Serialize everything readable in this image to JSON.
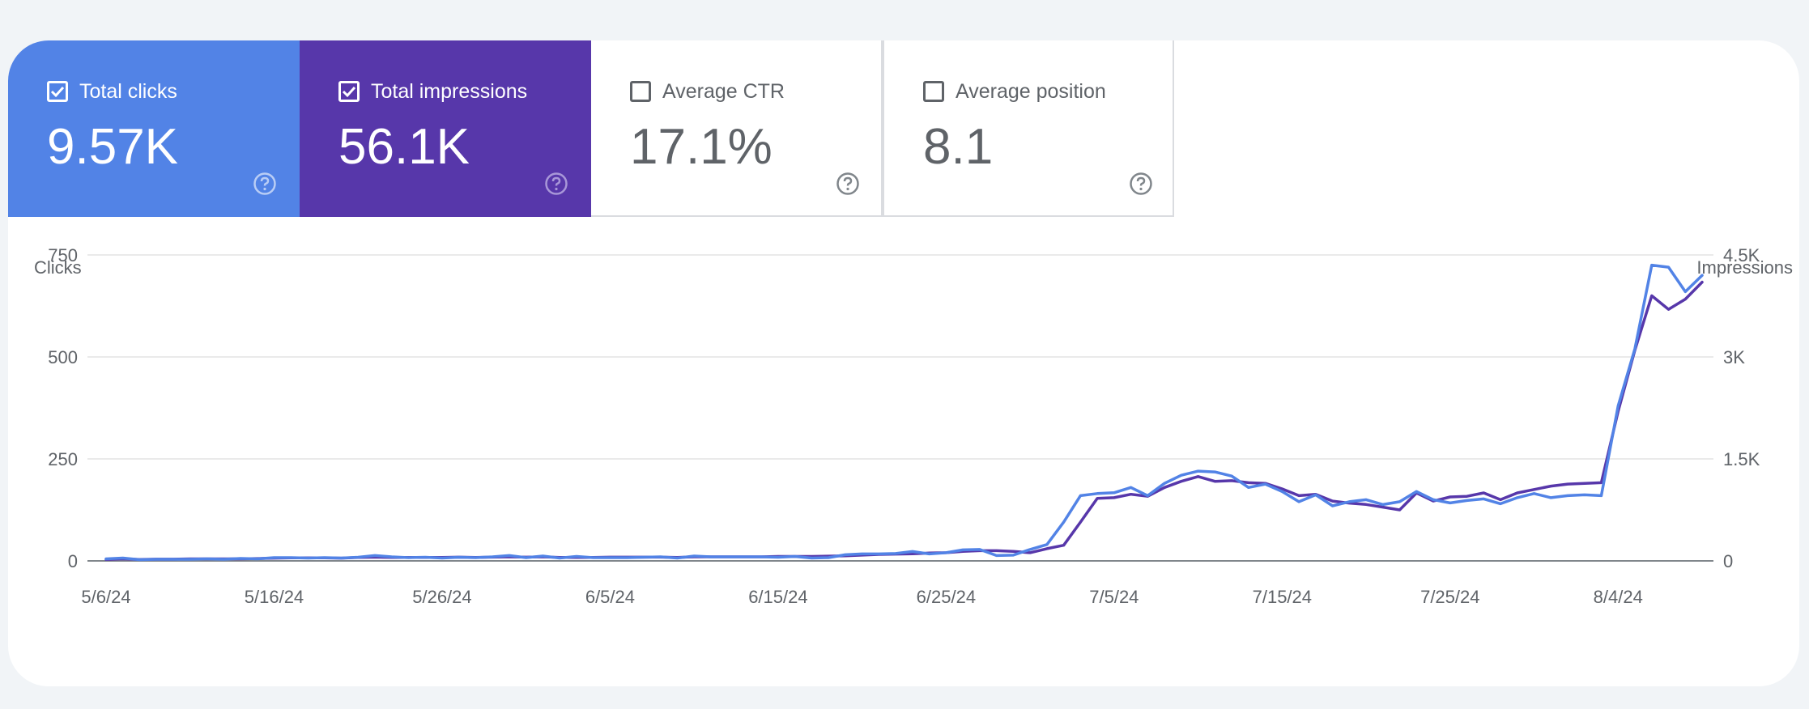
{
  "metrics": {
    "clicks": {
      "label": "Total clicks",
      "value": "9.57K",
      "checked": true,
      "color": "#5283e6"
    },
    "impressions": {
      "label": "Total impressions",
      "value": "56.1K",
      "checked": true,
      "color": "#5737aa"
    },
    "ctr": {
      "label": "Average CTR",
      "value": "17.1%",
      "checked": false
    },
    "position": {
      "label": "Average position",
      "value": "8.1",
      "checked": false
    }
  },
  "icons": {
    "checkbox_checked": "checkbox-checked-icon",
    "checkbox_empty": "checkbox-empty-icon",
    "help": "help-circle-icon"
  },
  "chart_data": {
    "type": "line",
    "left_axis_label": "Clicks",
    "right_axis_label": "Impressions",
    "left_ticks": [
      "0",
      "250",
      "500",
      "750"
    ],
    "right_ticks": [
      "0",
      "1.5K",
      "3K",
      "4.5K"
    ],
    "left_ylim": [
      0,
      750
    ],
    "right_ylim": [
      0,
      4500
    ],
    "x_tick_labels": [
      "5/6/24",
      "5/16/24",
      "5/26/24",
      "6/5/24",
      "6/15/24",
      "6/25/24",
      "7/5/24",
      "7/15/24",
      "7/25/24",
      "8/4/24"
    ],
    "x_start": "5/6/24",
    "x_end": "8/5/24",
    "grid": true,
    "series": [
      {
        "name": "Clicks",
        "axis": "left",
        "color": "#5283e6",
        "values": [
          5,
          7,
          3,
          4,
          4,
          4,
          5,
          4,
          6,
          5,
          8,
          8,
          7,
          8,
          7,
          9,
          13,
          10,
          8,
          9,
          7,
          9,
          8,
          10,
          13,
          8,
          12,
          7,
          11,
          8,
          8,
          8,
          9,
          10,
          7,
          12,
          10,
          10,
          10,
          10,
          9,
          11,
          7,
          8,
          15,
          17,
          17,
          18,
          23,
          17,
          20,
          27,
          28,
          13,
          14,
          28,
          40,
          95,
          160,
          165,
          167,
          180,
          160,
          190,
          210,
          220,
          218,
          208,
          180,
          188,
          170,
          145,
          162,
          135,
          145,
          150,
          138,
          145,
          170,
          150,
          142,
          148,
          152,
          140,
          155,
          165,
          155,
          160,
          162,
          160,
          380,
          520,
          725,
          720,
          660,
          700
        ]
      },
      {
        "name": "Impressions",
        "axis": "right",
        "color": "#5737aa",
        "values": [
          20,
          30,
          20,
          25,
          25,
          30,
          30,
          30,
          30,
          35,
          40,
          45,
          45,
          45,
          40,
          50,
          55,
          50,
          50,
          50,
          50,
          55,
          50,
          55,
          60,
          55,
          60,
          50,
          50,
          50,
          55,
          55,
          55,
          55,
          50,
          60,
          60,
          60,
          60,
          60,
          65,
          65,
          65,
          70,
          75,
          85,
          95,
          100,
          105,
          115,
          120,
          140,
          150,
          150,
          140,
          120,
          180,
          230,
          570,
          920,
          930,
          980,
          950,
          1080,
          1170,
          1240,
          1170,
          1180,
          1150,
          1140,
          1060,
          960,
          980,
          880,
          850,
          830,
          790,
          750,
          1000,
          880,
          940,
          950,
          1000,
          900,
          1000,
          1050,
          1100,
          1130,
          1140,
          1150,
          2200,
          3100,
          3900,
          3700,
          3850,
          4100
        ]
      }
    ]
  }
}
